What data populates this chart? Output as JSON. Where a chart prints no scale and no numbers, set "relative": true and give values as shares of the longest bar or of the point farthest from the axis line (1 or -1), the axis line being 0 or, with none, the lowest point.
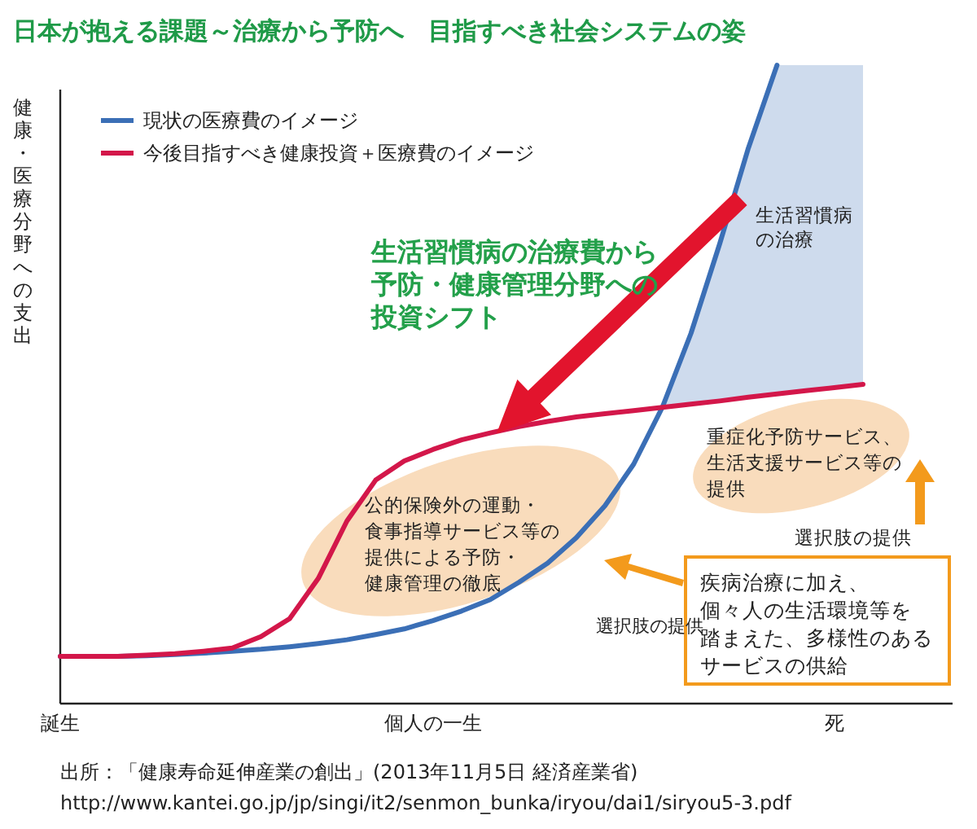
{
  "chart_data": {
    "type": "line",
    "relative": true,
    "title": "日本が抱える課題～治療から予防へ　目指すべき社会システムの姿",
    "ylabel": "健康・医療分野への支出",
    "legend": "top left",
    "marker": "none",
    "line_style": "solid",
    "categories": [
      "誕生",
      null,
      null,
      null,
      null,
      null,
      null,
      null,
      null,
      null,
      null,
      null,
      null,
      "個人の一生",
      null,
      null,
      null,
      null,
      null,
      null,
      null,
      null,
      null,
      null,
      null,
      null,
      null,
      "死",
      null
    ],
    "series": [
      {
        "name": "現状の医療費のイメージ",
        "color": "#3b6fb6",
        "values": [
          0.074,
          0.074,
          0.074,
          0.075,
          0.077,
          0.079,
          0.082,
          0.085,
          0.089,
          0.094,
          0.1,
          0.108,
          0.117,
          0.13,
          0.145,
          0.163,
          0.19,
          0.22,
          0.26,
          0.31,
          0.375,
          0.464,
          0.58,
          0.72,
          0.87,
          1.0,
          null,
          null,
          null
        ],
        "lower": [
          null,
          null,
          null,
          null,
          null,
          null,
          null,
          null,
          null,
          null,
          null,
          null,
          null,
          null,
          null,
          null,
          null,
          null,
          null,
          null,
          null,
          0.464,
          0.469,
          0.474,
          0.48,
          0.485,
          0.49,
          0.495,
          0.5
        ],
        "upper": [
          null,
          null,
          null,
          null,
          null,
          null,
          null,
          null,
          null,
          null,
          null,
          null,
          null,
          null,
          null,
          null,
          null,
          null,
          null,
          null,
          null,
          0.464,
          0.58,
          0.72,
          0.87,
          1.0,
          1.0,
          1.0,
          1.0
        ]
      },
      {
        "name": "今後目指すべき健康投資＋医療費のイメージ",
        "color": "#d3174a",
        "values": [
          0.074,
          0.074,
          0.074,
          0.076,
          0.078,
          0.082,
          0.087,
          0.105,
          0.133,
          0.196,
          0.286,
          0.35,
          0.38,
          0.398,
          0.413,
          0.424,
          0.434,
          0.442,
          0.449,
          0.454,
          0.459,
          0.464,
          0.469,
          0.474,
          0.48,
          0.485,
          0.49,
          0.495,
          0.5
        ]
      }
    ],
    "annotations": [
      "生活習慣病の治療費から予防・健康管理分野への投資シフト",
      "生活習慣病の治療",
      "公的保険外の運動・食事指導サービス等の提供による予防・健康管理の徹底",
      "重症化予防サービス、生活支援サービス等の提供",
      "疾病治療に加え、個々人の生活環境等を踏まえた、多様性のあるサービスの供給",
      "選択肢の提供",
      "選択肢の提供",
      "出所：「健康寿命延伸産業の創出」(2013年11月5日 経済産業省)",
      "http://www.kantei.go.jp/jp/singi/it2/senmon_bunka/iryou/dai1/siryou5-3.pdf"
    ]
  }
}
